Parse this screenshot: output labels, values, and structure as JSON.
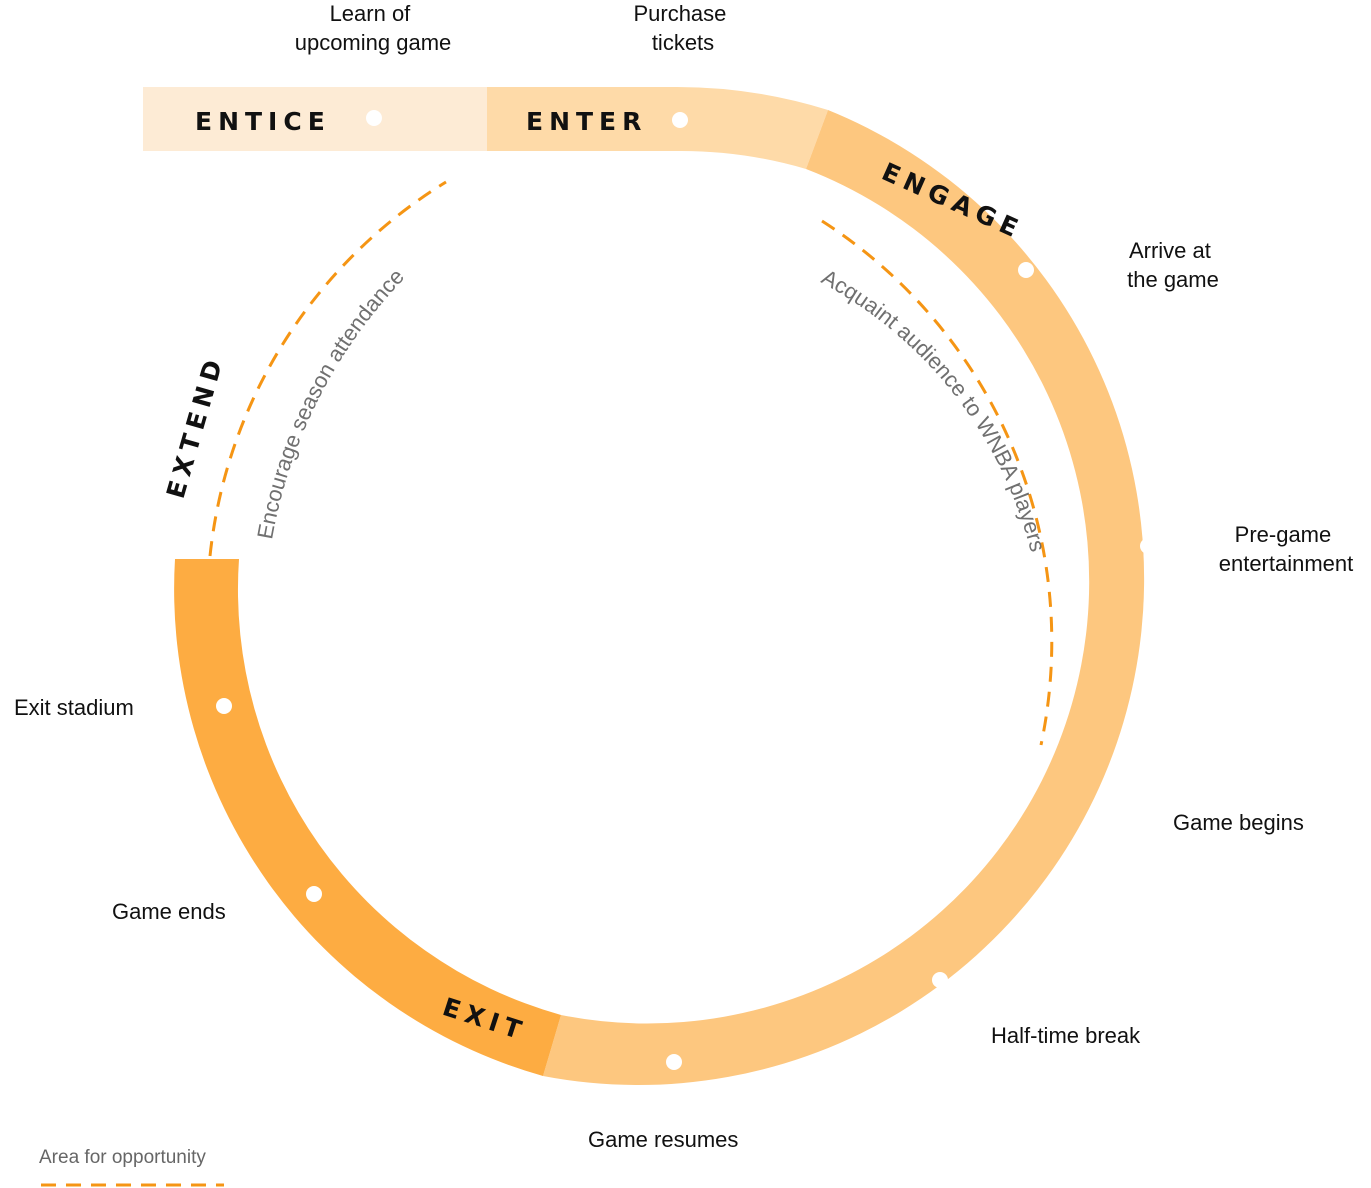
{
  "colors": {
    "entice": "#fdebd5",
    "enter": "#fedaa8",
    "engage": "#fdc77f",
    "exit": "#fdac42",
    "opportunity_line": "#f59514",
    "opportunity_text": "#707070",
    "legend_text": "#666666",
    "dot": "#ffffff"
  },
  "phases": {
    "entice": "ENTICE",
    "enter": "ENTER",
    "engage": "ENGAGE",
    "exit": "EXIT",
    "extend": "EXTEND"
  },
  "steps": {
    "learn": [
      "Learn of",
      "upcoming game"
    ],
    "purchase": [
      "Purchase",
      "tickets"
    ],
    "arrive": [
      "Arrive at",
      "the game"
    ],
    "pregame": [
      "Pre-game",
      "entertainment"
    ],
    "begins": "Game begins",
    "halftime": "Half-time break",
    "resumes": "Game resumes",
    "ends": "Game ends",
    "exit_stadium": "Exit stadium"
  },
  "opportunities": {
    "extend": "Encourage season attendance",
    "engage": "Acquaint audience to WNBA players"
  },
  "legend": {
    "label": "Area for opportunity"
  }
}
